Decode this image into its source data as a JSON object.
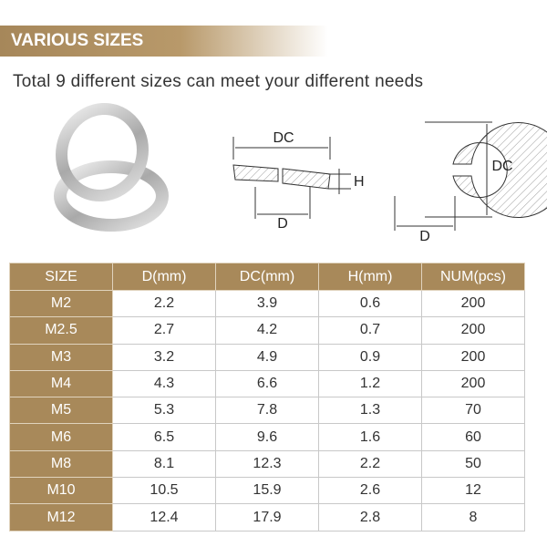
{
  "header": {
    "title": "VARIOUS SIZES",
    "subtitle": "Total 9 different sizes can meet your different needs"
  },
  "diagrams": {
    "side_view": {
      "dc": "DC",
      "h": "H",
      "d": "D"
    },
    "top_view": {
      "dc": "DC",
      "d": "D"
    }
  },
  "table": {
    "columns": [
      "SIZE",
      "D(mm)",
      "DC(mm)",
      "H(mm)",
      "NUM(pcs)"
    ],
    "rows": [
      [
        "M2",
        "2.2",
        "3.9",
        "0.6",
        "200"
      ],
      [
        "M2.5",
        "2.7",
        "4.2",
        "0.7",
        "200"
      ],
      [
        "M3",
        "3.2",
        "4.9",
        "0.9",
        "200"
      ],
      [
        "M4",
        "4.3",
        "6.6",
        "1.2",
        "200"
      ],
      [
        "M5",
        "5.3",
        "7.8",
        "1.3",
        "70"
      ],
      [
        "M6",
        "6.5",
        "9.6",
        "1.6",
        "60"
      ],
      [
        "M8",
        "8.1",
        "12.3",
        "2.2",
        "50"
      ],
      [
        "M10",
        "10.5",
        "15.9",
        "2.6",
        "12"
      ],
      [
        "M12",
        "12.4",
        "17.9",
        "2.8",
        "8"
      ]
    ]
  }
}
